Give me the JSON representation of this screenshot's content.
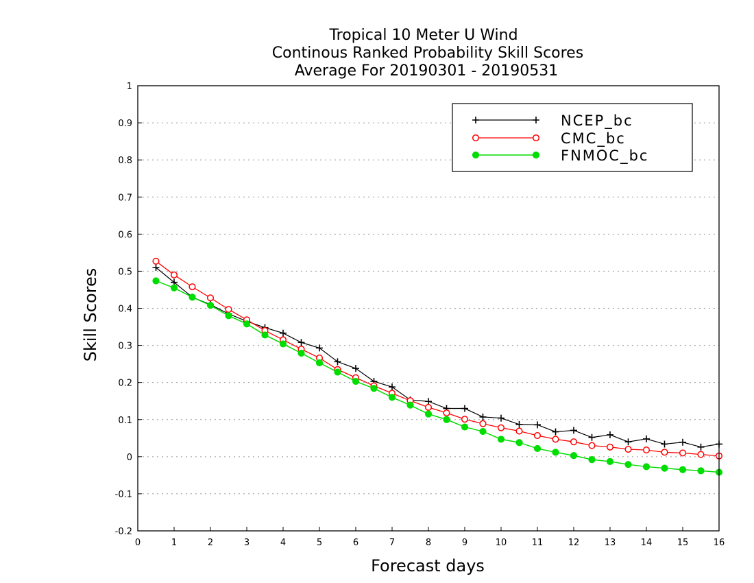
{
  "chart_data": {
    "type": "line",
    "title": [
      "Tropical 10 Meter U Wind",
      "Continous Ranked Probability Skill Scores",
      "Average For 20190301 - 20190531"
    ],
    "xlabel": "Forecast days",
    "ylabel": "Skill Scores",
    "xlim": [
      0,
      16
    ],
    "ylim": [
      -0.2,
      1
    ],
    "xticks": [
      "0",
      "1",
      "2",
      "3",
      "4",
      "5",
      "6",
      "7",
      "8",
      "9",
      "10",
      "11",
      "12",
      "13",
      "14",
      "15",
      "16"
    ],
    "yticks": [
      "-0.2",
      "-0.1",
      "0",
      "0.1",
      "0.2",
      "0.3",
      "0.4",
      "0.5",
      "0.6",
      "0.7",
      "0.8",
      "0.9",
      "1"
    ],
    "grid": "horizontal dotted",
    "legend_position": "top-right",
    "x": [
      0.5,
      1,
      1.5,
      2,
      2.5,
      3,
      3.5,
      4,
      4.5,
      5,
      5.5,
      6,
      6.5,
      7,
      7.5,
      8,
      8.5,
      9,
      9.5,
      10,
      10.5,
      11,
      11.5,
      12,
      12.5,
      13,
      13.5,
      14,
      14.5,
      15,
      15.5,
      16
    ],
    "series": [
      {
        "name": "NCEP_bc",
        "color": "#000000",
        "marker": "plus",
        "values": [
          0.51,
          0.47,
          0.43,
          0.41,
          0.385,
          0.365,
          0.348,
          0.333,
          0.308,
          0.293,
          0.256,
          0.238,
          0.203,
          0.188,
          0.153,
          0.149,
          0.13,
          0.13,
          0.107,
          0.104,
          0.087,
          0.086,
          0.067,
          0.071,
          0.052,
          0.059,
          0.04,
          0.048,
          0.034,
          0.039,
          0.026,
          0.034
        ]
      },
      {
        "name": "CMC_bc",
        "color": "#ff0000",
        "marker": "open-circle",
        "values": [
          0.527,
          0.49,
          0.458,
          0.428,
          0.397,
          0.369,
          0.34,
          0.315,
          0.29,
          0.266,
          0.235,
          0.213,
          0.191,
          0.171,
          0.151,
          0.133,
          0.118,
          0.101,
          0.089,
          0.078,
          0.069,
          0.057,
          0.047,
          0.04,
          0.03,
          0.026,
          0.02,
          0.018,
          0.012,
          0.01,
          0.006,
          0.002
        ]
      },
      {
        "name": "FNMOC_bc",
        "color": "#00dd00",
        "marker": "filled-circle",
        "values": [
          0.474,
          0.455,
          0.43,
          0.408,
          0.38,
          0.358,
          0.328,
          0.304,
          0.279,
          0.253,
          0.228,
          0.203,
          0.184,
          0.16,
          0.139,
          0.115,
          0.1,
          0.08,
          0.068,
          0.047,
          0.038,
          0.022,
          0.012,
          0.003,
          -0.008,
          -0.013,
          -0.021,
          -0.027,
          -0.031,
          -0.035,
          -0.038,
          -0.042
        ]
      }
    ]
  }
}
